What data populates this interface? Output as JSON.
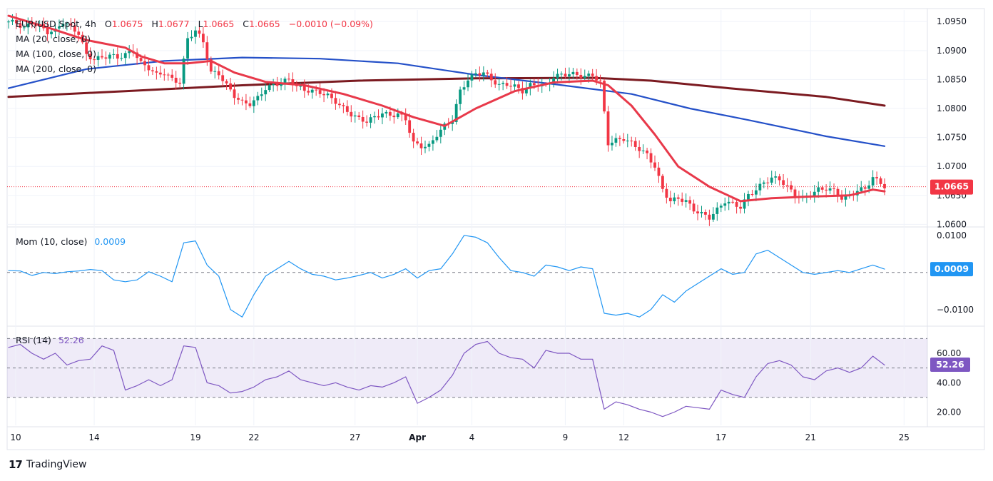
{
  "header": {
    "symbol": "EUR/USD Spot, 4h",
    "o_label": "O",
    "o": "1.0675",
    "h_label": "H",
    "h": "1.0677",
    "l_label": "L",
    "l": "1.0665",
    "c_label": "C",
    "c": "1.0665",
    "change": "−0.0010 (−0.09%)"
  },
  "indicators": {
    "ma20": "MA (20, close, 0)",
    "ma100": "MA (100, close, 0)",
    "ma200": "MA (200, close, 0)",
    "mom": "Mom (10, close)",
    "mom_value": "0.0009",
    "rsi": "RSI (14)",
    "rsi_value": "52.26"
  },
  "price_tag": "1.0665",
  "brand": "TradingView",
  "colors": {
    "up": "#089981",
    "down": "#f23645",
    "ma20": "#e8394a",
    "ma100": "#2450c8",
    "ma200": "#7b1a20",
    "mom": "#2196f3",
    "rsi": "#7e57c2"
  },
  "chart_data": [
    {
      "type": "candlestick",
      "title": "EUR/USD Spot, 4h",
      "x_ticks": [
        "10",
        "14",
        "19",
        "22",
        "27",
        "Apr",
        "4",
        "9",
        "12",
        "17",
        "21",
        "25"
      ],
      "y_ticks": [
        "1.0950",
        "1.0900",
        "1.0850",
        "1.0800",
        "1.0750",
        "1.0700",
        "1.0650",
        "1.0600"
      ],
      "ylim": [
        1.0598,
        1.097
      ],
      "last_price": 1.0665,
      "close_path": [
        [
          0,
          1.095
        ],
        [
          2,
          1.0948
        ],
        [
          4,
          1.0938
        ],
        [
          6,
          1.0948
        ],
        [
          8,
          1.0942
        ],
        [
          10,
          1.0932
        ],
        [
          12,
          1.0934
        ],
        [
          14,
          1.095
        ],
        [
          16,
          1.094
        ],
        [
          18,
          1.093
        ],
        [
          20,
          1.0892
        ],
        [
          22,
          1.0885
        ],
        [
          24,
          1.0888
        ],
        [
          26,
          1.0892
        ],
        [
          28,
          1.0888
        ],
        [
          30,
          1.0893
        ],
        [
          32,
          1.09
        ],
        [
          34,
          1.0878
        ],
        [
          36,
          1.087
        ],
        [
          38,
          1.0858
        ],
        [
          40,
          1.0862
        ],
        [
          42,
          1.085
        ],
        [
          44,
          1.0845
        ],
        [
          46,
          1.092
        ],
        [
          48,
          1.0935
        ],
        [
          50,
          1.0915
        ],
        [
          52,
          1.0862
        ],
        [
          54,
          1.086
        ],
        [
          56,
          1.084
        ],
        [
          58,
          1.0822
        ],
        [
          60,
          1.081
        ],
        [
          62,
          1.0808
        ],
        [
          64,
          1.0818
        ],
        [
          66,
          1.0835
        ],
        [
          68,
          1.084
        ],
        [
          70,
          1.0845
        ],
        [
          72,
          1.085
        ],
        [
          74,
          1.0838
        ],
        [
          76,
          1.0832
        ],
        [
          78,
          1.083
        ],
        [
          80,
          1.0828
        ],
        [
          82,
          1.0822
        ],
        [
          84,
          1.0812
        ],
        [
          86,
          1.08
        ],
        [
          88,
          1.079
        ],
        [
          90,
          1.0782
        ],
        [
          92,
          1.0778
        ],
        [
          94,
          1.0785
        ],
        [
          96,
          1.0792
        ],
        [
          98,
          1.0788
        ],
        [
          100,
          1.079
        ],
        [
          102,
          1.0782
        ],
        [
          104,
          1.074
        ],
        [
          106,
          1.0735
        ],
        [
          108,
          1.0735
        ],
        [
          110,
          1.0755
        ],
        [
          112,
          1.077
        ],
        [
          114,
          1.078
        ],
        [
          116,
          1.083
        ],
        [
          118,
          1.085
        ],
        [
          120,
          1.086
        ],
        [
          122,
          1.0862
        ],
        [
          124,
          1.085
        ],
        [
          126,
          1.084
        ],
        [
          128,
          1.0842
        ],
        [
          130,
          1.0838
        ],
        [
          132,
          1.083
        ],
        [
          134,
          1.084
        ],
        [
          136,
          1.0842
        ],
        [
          138,
          1.0838
        ],
        [
          140,
          1.0855
        ],
        [
          142,
          1.0858
        ],
        [
          144,
          1.086
        ],
        [
          146,
          1.0858
        ],
        [
          148,
          1.0855
        ],
        [
          150,
          1.0858
        ],
        [
          152,
          1.0845
        ],
        [
          154,
          1.074
        ],
        [
          156,
          1.0745
        ],
        [
          158,
          1.0748
        ],
        [
          160,
          1.074
        ],
        [
          162,
          1.073
        ],
        [
          164,
          1.072
        ],
        [
          166,
          1.07
        ],
        [
          168,
          1.066
        ],
        [
          170,
          1.064
        ],
        [
          172,
          1.0645
        ],
        [
          174,
          1.064
        ],
        [
          176,
          1.0625
        ],
        [
          178,
          1.0618
        ],
        [
          180,
          1.0612
        ],
        [
          182,
          1.0625
        ],
        [
          184,
          1.064
        ],
        [
          186,
          1.0635
        ],
        [
          188,
          1.063
        ],
        [
          190,
          1.065
        ],
        [
          192,
          1.066
        ],
        [
          194,
          1.0672
        ],
        [
          196,
          1.068
        ],
        [
          198,
          1.0678
        ],
        [
          200,
          1.0665
        ],
        [
          202,
          1.065
        ],
        [
          204,
          1.0645
        ],
        [
          206,
          1.0652
        ],
        [
          208,
          1.066
        ],
        [
          210,
          1.0662
        ],
        [
          212,
          1.0658
        ],
        [
          214,
          1.0645
        ],
        [
          216,
          1.065
        ],
        [
          218,
          1.0658
        ],
        [
          220,
          1.0662
        ],
        [
          222,
          1.068
        ],
        [
          224,
          1.0672
        ],
        [
          225,
          1.0665
        ]
      ],
      "ma20": [
        [
          0,
          1.096
        ],
        [
          10,
          1.094
        ],
        [
          20,
          1.0918
        ],
        [
          30,
          1.0905
        ],
        [
          34,
          1.089
        ],
        [
          40,
          1.0878
        ],
        [
          46,
          1.0878
        ],
        [
          52,
          1.0882
        ],
        [
          58,
          1.0862
        ],
        [
          66,
          1.0846
        ],
        [
          76,
          1.084
        ],
        [
          86,
          1.0825
        ],
        [
          96,
          1.0805
        ],
        [
          104,
          1.0785
        ],
        [
          112,
          1.077
        ],
        [
          120,
          1.08
        ],
        [
          130,
          1.083
        ],
        [
          140,
          1.0845
        ],
        [
          150,
          1.0848
        ],
        [
          154,
          1.084
        ],
        [
          160,
          1.0805
        ],
        [
          166,
          1.0755
        ],
        [
          172,
          1.07
        ],
        [
          180,
          1.0665
        ],
        [
          188,
          1.064
        ],
        [
          196,
          1.0645
        ],
        [
          206,
          1.0648
        ],
        [
          216,
          1.065
        ],
        [
          222,
          1.066
        ],
        [
          225,
          1.0657
        ]
      ],
      "ma100": [
        [
          0,
          1.0835
        ],
        [
          20,
          1.0868
        ],
        [
          40,
          1.0882
        ],
        [
          60,
          1.0888
        ],
        [
          80,
          1.0886
        ],
        [
          100,
          1.0878
        ],
        [
          120,
          1.0858
        ],
        [
          140,
          1.0842
        ],
        [
          160,
          1.0825
        ],
        [
          175,
          1.08
        ],
        [
          190,
          1.078
        ],
        [
          210,
          1.0752
        ],
        [
          225,
          1.0735
        ]
      ],
      "ma200": [
        [
          0,
          1.082
        ],
        [
          30,
          1.083
        ],
        [
          60,
          1.084
        ],
        [
          90,
          1.0848
        ],
        [
          120,
          1.0852
        ],
        [
          150,
          1.0853
        ],
        [
          165,
          1.0848
        ],
        [
          185,
          1.0835
        ],
        [
          210,
          1.082
        ],
        [
          225,
          1.0805
        ]
      ]
    },
    {
      "type": "line",
      "title": "Mom (10, close)",
      "y_ticks": [
        "0.0100",
        "−0.0100"
      ],
      "ylim": [
        -0.0135,
        0.0115
      ],
      "last_value": 0.0009,
      "values": [
        [
          0,
          0.0005
        ],
        [
          3,
          0.0004
        ],
        [
          6,
          -0.0008
        ],
        [
          9,
          0.0
        ],
        [
          12,
          -0.0003
        ],
        [
          15,
          0.0002
        ],
        [
          18,
          0.0004
        ],
        [
          21,
          0.0008
        ],
        [
          24,
          0.0005
        ],
        [
          27,
          -0.002
        ],
        [
          30,
          -0.0025
        ],
        [
          33,
          -0.002
        ],
        [
          36,
          0.0002
        ],
        [
          39,
          -0.001
        ],
        [
          42,
          -0.0025
        ],
        [
          45,
          0.008
        ],
        [
          48,
          0.0085
        ],
        [
          51,
          0.002
        ],
        [
          54,
          -0.001
        ],
        [
          57,
          -0.01
        ],
        [
          60,
          -0.012
        ],
        [
          63,
          -0.006
        ],
        [
          66,
          -0.001
        ],
        [
          69,
          0.001
        ],
        [
          72,
          0.003
        ],
        [
          75,
          0.001
        ],
        [
          78,
          -0.0005
        ],
        [
          81,
          -0.001
        ],
        [
          84,
          -0.002
        ],
        [
          87,
          -0.0015
        ],
        [
          90,
          -0.0008
        ],
        [
          93,
          0.0
        ],
        [
          96,
          -0.0015
        ],
        [
          99,
          -0.0005
        ],
        [
          102,
          0.001
        ],
        [
          105,
          -0.0015
        ],
        [
          108,
          0.0005
        ],
        [
          111,
          0.001
        ],
        [
          114,
          0.005
        ],
        [
          117,
          0.01
        ],
        [
          120,
          0.0095
        ],
        [
          123,
          0.008
        ],
        [
          126,
          0.004
        ],
        [
          129,
          0.0005
        ],
        [
          132,
          0.0
        ],
        [
          135,
          -0.001
        ],
        [
          138,
          0.002
        ],
        [
          141,
          0.0015
        ],
        [
          144,
          0.0005
        ],
        [
          147,
          0.0015
        ],
        [
          150,
          0.001
        ],
        [
          153,
          -0.011
        ],
        [
          156,
          -0.0115
        ],
        [
          159,
          -0.011
        ],
        [
          162,
          -0.012
        ],
        [
          165,
          -0.01
        ],
        [
          168,
          -0.006
        ],
        [
          171,
          -0.008
        ],
        [
          174,
          -0.005
        ],
        [
          177,
          -0.003
        ],
        [
          180,
          -0.001
        ],
        [
          183,
          0.001
        ],
        [
          186,
          -0.0005
        ],
        [
          189,
          0.0
        ],
        [
          192,
          0.005
        ],
        [
          195,
          0.006
        ],
        [
          198,
          0.004
        ],
        [
          201,
          0.002
        ],
        [
          204,
          0.0
        ],
        [
          207,
          -0.0005
        ],
        [
          210,
          0.0
        ],
        [
          213,
          0.0005
        ],
        [
          216,
          0.0
        ],
        [
          219,
          0.001
        ],
        [
          222,
          0.002
        ],
        [
          225,
          0.0009
        ]
      ]
    },
    {
      "type": "line",
      "title": "RSI (14)",
      "y_ticks": [
        "60.00",
        "40.00",
        "20.00"
      ],
      "ylim": [
        12,
        76
      ],
      "bands": [
        30,
        50,
        70
      ],
      "last_value": 52.26,
      "values": [
        [
          0,
          64
        ],
        [
          3,
          66
        ],
        [
          6,
          60
        ],
        [
          9,
          56
        ],
        [
          12,
          60
        ],
        [
          15,
          52
        ],
        [
          18,
          55
        ],
        [
          21,
          56
        ],
        [
          24,
          65
        ],
        [
          27,
          62
        ],
        [
          30,
          35
        ],
        [
          33,
          38
        ],
        [
          36,
          42
        ],
        [
          39,
          38
        ],
        [
          42,
          42
        ],
        [
          45,
          65
        ],
        [
          48,
          64
        ],
        [
          51,
          40
        ],
        [
          54,
          38
        ],
        [
          57,
          33
        ],
        [
          60,
          34
        ],
        [
          63,
          37
        ],
        [
          66,
          42
        ],
        [
          69,
          44
        ],
        [
          72,
          48
        ],
        [
          75,
          42
        ],
        [
          78,
          40
        ],
        [
          81,
          38
        ],
        [
          84,
          40
        ],
        [
          87,
          37
        ],
        [
          90,
          35
        ],
        [
          93,
          38
        ],
        [
          96,
          37
        ],
        [
          99,
          40
        ],
        [
          102,
          44
        ],
        [
          105,
          26
        ],
        [
          108,
          30
        ],
        [
          111,
          35
        ],
        [
          114,
          45
        ],
        [
          117,
          60
        ],
        [
          120,
          66
        ],
        [
          123,
          68
        ],
        [
          126,
          60
        ],
        [
          129,
          57
        ],
        [
          132,
          56
        ],
        [
          135,
          50
        ],
        [
          138,
          62
        ],
        [
          141,
          60
        ],
        [
          144,
          60
        ],
        [
          147,
          56
        ],
        [
          150,
          56
        ],
        [
          153,
          22
        ],
        [
          156,
          27
        ],
        [
          159,
          25
        ],
        [
          162,
          22
        ],
        [
          165,
          20
        ],
        [
          168,
          17
        ],
        [
          171,
          20
        ],
        [
          174,
          24
        ],
        [
          177,
          23
        ],
        [
          180,
          22
        ],
        [
          183,
          35
        ],
        [
          186,
          32
        ],
        [
          189,
          30
        ],
        [
          192,
          44
        ],
        [
          195,
          53
        ],
        [
          198,
          55
        ],
        [
          201,
          52
        ],
        [
          204,
          44
        ],
        [
          207,
          42
        ],
        [
          210,
          48
        ],
        [
          213,
          50
        ],
        [
          216,
          47
        ],
        [
          219,
          50
        ],
        [
          222,
          58
        ],
        [
          225,
          52
        ]
      ]
    }
  ]
}
